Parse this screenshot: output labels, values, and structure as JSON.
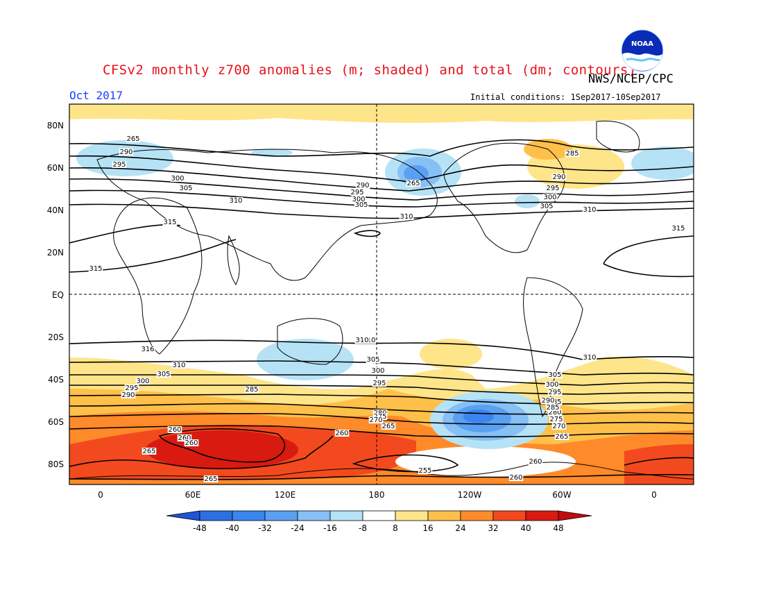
{
  "header": {
    "title": "CFSv2 monthly z700 anomalies (m; shaded) and total (dm; contours)",
    "agency": "NWS/NCEP/CPC",
    "valid_month": "Oct 2017",
    "initial_conditions": "Initial conditions: 1Sep2017-10Sep2017"
  },
  "logo": {
    "text": "NOAA",
    "icon": "noaa-logo"
  },
  "axes": {
    "lat_labels": [
      "80N",
      "60N",
      "40N",
      "20N",
      "EQ",
      "20S",
      "40S",
      "60S",
      "80S"
    ],
    "lon_labels": [
      "0",
      "60E",
      "120E",
      "180",
      "120W",
      "60W",
      "0"
    ]
  },
  "colorbar": {
    "ticks": [
      "-48",
      "-40",
      "-32",
      "-24",
      "-16",
      "-8",
      "8",
      "16",
      "24",
      "32",
      "40",
      "48"
    ],
    "colors": [
      "#2d6fe0",
      "#3a86ee",
      "#5aa0f2",
      "#86c0f5",
      "#b6e2f6",
      "#ffffff",
      "#ffe58a",
      "#ffc04a",
      "#ff8a2a",
      "#f24a1e",
      "#d81a10"
    ],
    "low_color": "#1f55d6",
    "high_color": "#c00c0c"
  },
  "contour_labels": {
    "nh": [
      "265",
      "290",
      "295",
      "300",
      "305",
      "310",
      "315",
      "315",
      "290",
      "295",
      "300",
      "305",
      "310",
      "265",
      "290",
      "295",
      "300",
      "305",
      "310",
      "285",
      "315"
    ],
    "sh": [
      "310",
      "305",
      "300",
      "295",
      "285",
      "280",
      "275",
      "270",
      "265",
      "260",
      "260",
      "265",
      "310",
      "316",
      "310",
      "305",
      "300",
      "295",
      "290",
      "285",
      "280",
      "275",
      "270",
      "265",
      "260",
      "260",
      "255",
      "260",
      "265",
      "316",
      "310",
      "305",
      "300",
      "295",
      "290",
      "285",
      "260"
    ]
  }
}
